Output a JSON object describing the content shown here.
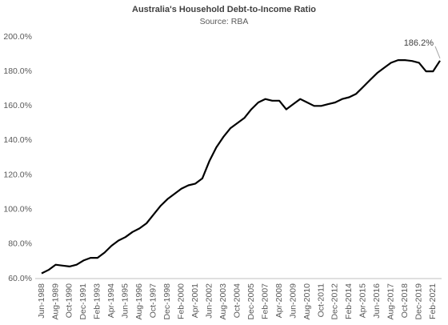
{
  "chart_data": {
    "type": "line",
    "title": "Australia's Household Debt-to-Income Ratio",
    "subtitle": "Source: RBA",
    "categories": [
      "Jun-1988",
      null,
      "Aug-1989",
      null,
      "Oct-1990",
      null,
      "Dec-1991",
      null,
      "Feb-1993",
      null,
      "Apr-1994",
      null,
      "Jun-1995",
      null,
      "Aug-1996",
      null,
      "Oct-1997",
      null,
      "Dec-1998",
      null,
      "Feb-2000",
      null,
      "Apr-2001",
      null,
      "Jun-2002",
      null,
      "Aug-2003",
      null,
      "Oct-2004",
      null,
      "Dec-2005",
      null,
      "Feb-2007",
      null,
      "Apr-2008",
      null,
      "Jun-2009",
      null,
      "Aug-2010",
      null,
      "Oct-2011",
      null,
      "Dec-2012",
      null,
      "Feb-2014",
      null,
      "Apr-2015",
      null,
      "Jun-2016",
      null,
      "Aug-2017",
      null,
      "Oct-2018",
      null,
      "Dec-2019",
      null,
      "Feb-2021",
      null
    ],
    "values": [
      63,
      65,
      68,
      67.5,
      67,
      68,
      70.5,
      72,
      72,
      75,
      79,
      82,
      84,
      87,
      89,
      92,
      97,
      102,
      106,
      109,
      112,
      114,
      115,
      118,
      128,
      136,
      142,
      147,
      150,
      153,
      158,
      162,
      164,
      163,
      163,
      158,
      161,
      164,
      162,
      160,
      160,
      161,
      162,
      164,
      165,
      167,
      171,
      175,
      179,
      182,
      185,
      186.5,
      186.5,
      186,
      185,
      180,
      180,
      186.2
    ],
    "value_labels": [
      null,
      null,
      null,
      null,
      null,
      null,
      null,
      null,
      null,
      null,
      null,
      null,
      null,
      null,
      null,
      null,
      null,
      null,
      null,
      null,
      null,
      null,
      null,
      null,
      null,
      null,
      null,
      null,
      null,
      null,
      null,
      null,
      null,
      null,
      null,
      null,
      null,
      null,
      null,
      null,
      null,
      null,
      null,
      null,
      null,
      null,
      null,
      null,
      null,
      null,
      null,
      null,
      null,
      null,
      null,
      null,
      null,
      "186.2%"
    ],
    "color": "#000000",
    "ylim": [
      60,
      200
    ],
    "yticks": [
      {
        "value": 60,
        "label": "60.0%"
      },
      {
        "value": 80,
        "label": "80.0%"
      },
      {
        "value": 100,
        "label": "100.0%"
      },
      {
        "value": 120,
        "label": "120.0%"
      },
      {
        "value": 140,
        "label": "140.0%"
      },
      {
        "value": 160,
        "label": "160.0%"
      },
      {
        "value": 180,
        "label": "180.0%"
      },
      {
        "value": 200,
        "label": "200.0%"
      }
    ],
    "grid": false
  }
}
